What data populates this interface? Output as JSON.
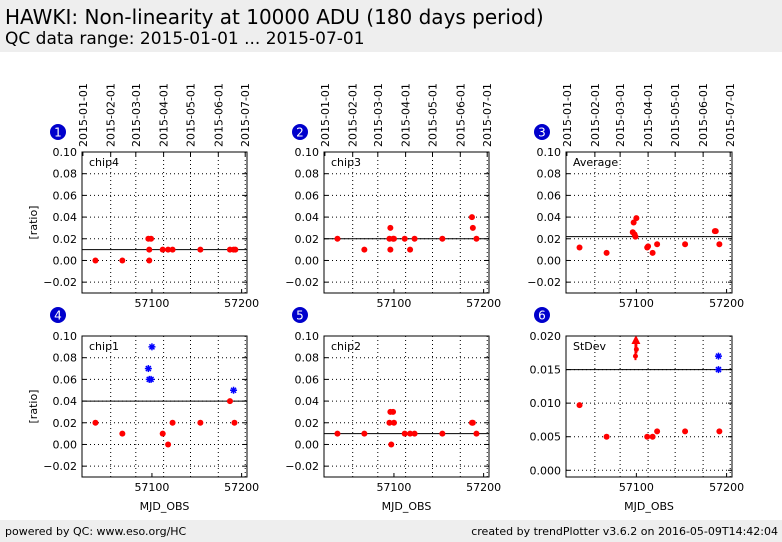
{
  "header": {
    "title": "HAWKI: Non-linearity at 10000 ADU (180 days period)",
    "subtitle": "QC data range: 2015-01-01 ... 2015-07-01"
  },
  "footer": {
    "left": "powered by QC: www.eso.org/HC",
    "right": "created by trendPlotter v3.6.2 on 2016-05-09T14:42:04"
  },
  "colors": {
    "point": "#ff0000",
    "outlier": "#0000ff",
    "header_bg": "#eeeeee",
    "badge": "#0000cc"
  },
  "date_ticks": [
    "2015-01-01",
    "2015-02-01",
    "2015-03-01",
    "2015-04-01",
    "2015-05-01",
    "2015-06-01",
    "2015-07-01"
  ],
  "chart_data": [
    {
      "panel": "1",
      "type": "scatter",
      "label": "chip4",
      "ylabel": "[ratio]",
      "xlabel": "",
      "xlim": [
        57022,
        57206
      ],
      "ylim": [
        -0.03,
        0.1
      ],
      "yticks": [
        "−0.02",
        "0.00",
        "0.02",
        "0.04",
        "0.06",
        "0.08",
        "0.10"
      ],
      "ytick_values": [
        -0.02,
        0,
        0.02,
        0.04,
        0.06,
        0.08,
        0.1
      ],
      "xticks": [
        "57100",
        "57200"
      ],
      "xtick_values": [
        57100,
        57200
      ],
      "reference_line": 0.01,
      "points": [
        [
          57037,
          0.0
        ],
        [
          57067,
          0.0
        ],
        [
          57096,
          0.02
        ],
        [
          57097,
          0.01
        ],
        [
          57097,
          0.0
        ],
        [
          57099,
          0.02
        ],
        [
          57112,
          0.01
        ],
        [
          57118,
          0.01
        ],
        [
          57123,
          0.01
        ],
        [
          57154,
          0.01
        ],
        [
          57187,
          0.01
        ],
        [
          57191,
          0.01
        ],
        [
          57193,
          0.01
        ]
      ],
      "outliers": [],
      "arrows": []
    },
    {
      "panel": "2",
      "type": "scatter",
      "label": "chip3",
      "ylabel": "",
      "xlabel": "",
      "xlim": [
        57022,
        57206
      ],
      "ylim": [
        -0.03,
        0.1
      ],
      "yticks": [
        "−0.02",
        "0.00",
        "0.02",
        "0.04",
        "0.06",
        "0.08",
        "0.10"
      ],
      "ytick_values": [
        -0.02,
        0,
        0.02,
        0.04,
        0.06,
        0.08,
        0.1
      ],
      "xticks": [
        "57100",
        "57200"
      ],
      "xtick_values": [
        57100,
        57200
      ],
      "reference_line": 0.02,
      "points": [
        [
          57037,
          0.02
        ],
        [
          57067,
          0.01
        ],
        [
          57095,
          0.02
        ],
        [
          57096,
          0.03
        ],
        [
          57096,
          0.01
        ],
        [
          57099,
          0.02
        ],
        [
          57100,
          0.02
        ],
        [
          57112,
          0.02
        ],
        [
          57118,
          0.01
        ],
        [
          57123,
          0.02
        ],
        [
          57154,
          0.02
        ],
        [
          57187,
          0.04
        ],
        [
          57188,
          0.03
        ],
        [
          57192,
          0.02
        ]
      ],
      "outliers": [],
      "arrows": []
    },
    {
      "panel": "3",
      "type": "scatter",
      "label": "Average",
      "ylabel": "",
      "xlabel": "",
      "xlim": [
        57022,
        57206
      ],
      "ylim": [
        -0.03,
        0.1
      ],
      "yticks": [
        "−0.02",
        "0.00",
        "0.02",
        "0.04",
        "0.06",
        "0.08",
        "0.10"
      ],
      "ytick_values": [
        -0.02,
        0,
        0.02,
        0.04,
        0.06,
        0.08,
        0.1
      ],
      "xticks": [
        "57100",
        "57200"
      ],
      "xtick_values": [
        57100,
        57200
      ],
      "reference_line": 0.022,
      "points": [
        [
          57037,
          0.012
        ],
        [
          57067,
          0.007
        ],
        [
          57096,
          0.026
        ],
        [
          57097,
          0.035
        ],
        [
          57098,
          0.024
        ],
        [
          57099,
          0.022
        ],
        [
          57100,
          0.039
        ],
        [
          57112,
          0.012
        ],
        [
          57113,
          0.013
        ],
        [
          57118,
          0.007
        ],
        [
          57123,
          0.015
        ],
        [
          57154,
          0.015
        ],
        [
          57187,
          0.027
        ],
        [
          57188,
          0.027
        ],
        [
          57192,
          0.015
        ]
      ],
      "outliers": [],
      "arrows": []
    },
    {
      "panel": "4",
      "type": "scatter",
      "label": "chip1",
      "ylabel": "[ratio]",
      "xlabel": "MJD_OBS",
      "xlim": [
        57022,
        57206
      ],
      "ylim": [
        -0.03,
        0.1
      ],
      "yticks": [
        "−0.02",
        "0.00",
        "0.02",
        "0.04",
        "0.06",
        "0.08",
        "0.10"
      ],
      "ytick_values": [
        -0.02,
        0,
        0.02,
        0.04,
        0.06,
        0.08,
        0.1
      ],
      "xticks": [
        "57100",
        "57200"
      ],
      "xtick_values": [
        57100,
        57200
      ],
      "reference_line": 0.04,
      "points": [
        [
          57037,
          0.02
        ],
        [
          57067,
          0.01
        ],
        [
          57112,
          0.01
        ],
        [
          57118,
          0.0
        ],
        [
          57123,
          0.02
        ],
        [
          57154,
          0.02
        ],
        [
          57187,
          0.04
        ],
        [
          57192,
          0.02
        ]
      ],
      "outliers": [
        [
          57096,
          0.07
        ],
        [
          57097,
          0.06
        ],
        [
          57099,
          0.06
        ],
        [
          57100,
          0.09
        ],
        [
          57191,
          0.05
        ]
      ],
      "arrows": []
    },
    {
      "panel": "5",
      "type": "scatter",
      "label": "chip2",
      "ylabel": "",
      "xlabel": "MJD_OBS",
      "xlim": [
        57022,
        57206
      ],
      "ylim": [
        -0.03,
        0.1
      ],
      "yticks": [
        "−0.02",
        "0.00",
        "0.02",
        "0.04",
        "0.06",
        "0.08",
        "0.10"
      ],
      "ytick_values": [
        -0.02,
        0,
        0.02,
        0.04,
        0.06,
        0.08,
        0.1
      ],
      "xticks": [
        "57100",
        "57200"
      ],
      "xtick_values": [
        57100,
        57200
      ],
      "reference_line": 0.01,
      "points": [
        [
          57037,
          0.01
        ],
        [
          57067,
          0.01
        ],
        [
          57095,
          0.02
        ],
        [
          57096,
          0.03
        ],
        [
          57097,
          0.0
        ],
        [
          57099,
          0.03
        ],
        [
          57100,
          0.02
        ],
        [
          57112,
          0.01
        ],
        [
          57118,
          0.01
        ],
        [
          57123,
          0.01
        ],
        [
          57154,
          0.01
        ],
        [
          57187,
          0.02
        ],
        [
          57188,
          0.02
        ],
        [
          57192,
          0.01
        ]
      ],
      "outliers": [],
      "arrows": []
    },
    {
      "panel": "6",
      "type": "scatter",
      "label": "StDev",
      "ylabel": "",
      "xlabel": "MJD_OBS",
      "xlim": [
        57022,
        57206
      ],
      "ylim": [
        -0.001,
        0.02
      ],
      "yticks": [
        "0.000",
        "0.005",
        "0.010",
        "0.015",
        "0.020"
      ],
      "ytick_values": [
        0,
        0.005,
        0.01,
        0.015,
        0.02
      ],
      "xticks": [
        "57100",
        "57200"
      ],
      "xtick_values": [
        57100,
        57200
      ],
      "reference_line": 0.015,
      "points": [
        [
          57037,
          0.0097
        ],
        [
          57067,
          0.005
        ],
        [
          57112,
          0.005
        ],
        [
          57118,
          0.005
        ],
        [
          57123,
          0.0058
        ],
        [
          57154,
          0.0058
        ],
        [
          57192,
          0.0058
        ]
      ],
      "outliers": [
        [
          57191,
          0.017
        ],
        [
          57191,
          0.015
        ]
      ],
      "arrows": [
        [
          57099,
          0.017
        ],
        [
          57100,
          0.018
        ]
      ]
    }
  ]
}
